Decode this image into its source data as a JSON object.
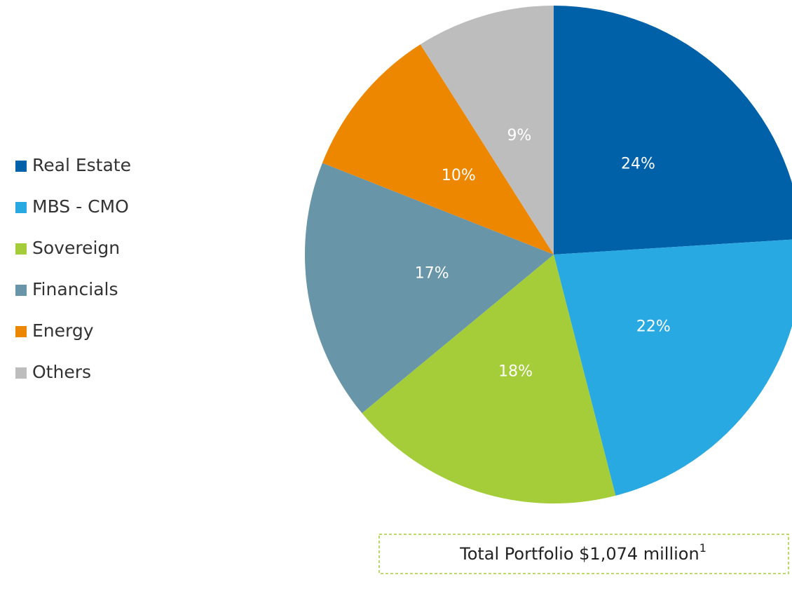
{
  "chart_data": {
    "type": "pie",
    "categories": [
      "Real Estate",
      "MBS - CMO",
      "Sovereign",
      "Financials",
      "Energy",
      "Others"
    ],
    "values": [
      24,
      22,
      18,
      17,
      10,
      9
    ],
    "value_labels": [
      "24%",
      "22%",
      "18%",
      "17%",
      "10%",
      "9%"
    ],
    "colors": [
      "#0060a8",
      "#29a9e1",
      "#a4cd39",
      "#6895a8",
      "#ee8700",
      "#bdbdbd"
    ],
    "legend": "left",
    "annotation": {
      "text": "Total Portfolio $1,074 million",
      "footnote": "1"
    }
  }
}
